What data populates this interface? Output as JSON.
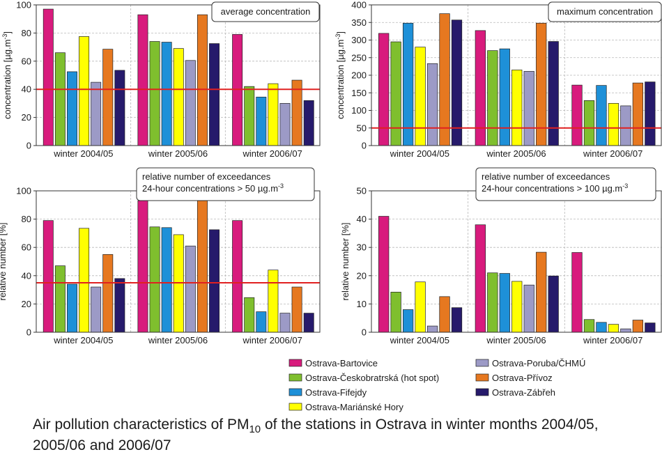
{
  "caption": {
    "pre": "Air pollution characteristics of PM",
    "sub": "10",
    "post": " of the stations in Ostrava in winter months 2004/05, 2005/06 and 2006/07"
  },
  "legend": {
    "stations": [
      {
        "name": "Ostrava-Bartovice",
        "color": "#d81b7d"
      },
      {
        "name": "Ostrava-Českobratrská (hot spot)",
        "color": "#7fbf2e"
      },
      {
        "name": "Ostrava-Fifejdy",
        "color": "#1e90d8"
      },
      {
        "name": "Ostrava-Mariánské Hory",
        "color": "#ffff00"
      },
      {
        "name": "Ostrava-Poruba/ČHMÚ",
        "color": "#9c9ac6"
      },
      {
        "name": "Ostrava-Přívoz",
        "color": "#e67820"
      },
      {
        "name": "Ostrava-Zábřeh",
        "color": "#261a6b"
      }
    ]
  },
  "chart_data": [
    {
      "type": "bar",
      "title": "average concentration",
      "ylabel": "concentration [µg.m-3]",
      "categories": [
        "winter 2004/05",
        "winter 2005/06",
        "winter 2006/07"
      ],
      "ylim": [
        0,
        100
      ],
      "yticks": [
        0,
        20,
        40,
        60,
        80,
        100
      ],
      "limit_line": 40,
      "series": [
        {
          "name": "Ostrava-Bartovice",
          "values": [
            97,
            93,
            79
          ]
        },
        {
          "name": "Ostrava-Českobratrská (hot spot)",
          "values": [
            66,
            74,
            42
          ]
        },
        {
          "name": "Ostrava-Fifejdy",
          "values": [
            52.5,
            73.5,
            34.5
          ]
        },
        {
          "name": "Ostrava-Mariánské Hory",
          "values": [
            77.5,
            69,
            44
          ]
        },
        {
          "name": "Ostrava-Poruba/ČHMÚ",
          "values": [
            45,
            60.5,
            30
          ]
        },
        {
          "name": "Ostrava-Přívoz",
          "values": [
            68.5,
            93,
            46.5
          ]
        },
        {
          "name": "Ostrava-Zábřeh",
          "values": [
            53.5,
            72.5,
            32
          ]
        }
      ]
    },
    {
      "type": "bar",
      "title": "maximum concentration",
      "ylabel": "concentration [µg.m-3]",
      "categories": [
        "winter 2004/05",
        "winter 2005/06",
        "winter 2006/07"
      ],
      "ylim": [
        0,
        400
      ],
      "yticks": [
        0,
        50,
        100,
        150,
        200,
        250,
        300,
        350,
        400
      ],
      "limit_line": 50,
      "series": [
        {
          "name": "Ostrava-Bartovice",
          "values": [
            319,
            327,
            172
          ]
        },
        {
          "name": "Ostrava-Českobratrská (hot spot)",
          "values": [
            295,
            270,
            128
          ]
        },
        {
          "name": "Ostrava-Fifejdy",
          "values": [
            348,
            275,
            171
          ]
        },
        {
          "name": "Ostrava-Mariánské Hory",
          "values": [
            280,
            215,
            120
          ]
        },
        {
          "name": "Ostrava-Poruba/ČHMÚ",
          "values": [
            233,
            211,
            113
          ]
        },
        {
          "name": "Ostrava-Přívoz",
          "values": [
            375,
            348,
            178
          ]
        },
        {
          "name": "Ostrava-Zábřeh",
          "values": [
            357,
            296,
            181
          ]
        }
      ]
    },
    {
      "type": "bar",
      "title_lines": [
        "relative number of exceedances",
        "24-hour concentrations > 50 µg.m-3"
      ],
      "ylabel": "relative number [%]",
      "categories": [
        "winter 2004/05",
        "winter 2005/06",
        "winter 2006/07"
      ],
      "ylim": [
        0,
        100
      ],
      "yticks": [
        0,
        20,
        40,
        60,
        80,
        100
      ],
      "limit_line": 35,
      "series": [
        {
          "name": "Ostrava-Bartovice",
          "values": [
            79,
            93,
            79
          ]
        },
        {
          "name": "Ostrava-Českobratrská (hot spot)",
          "values": [
            47,
            74.5,
            24.5
          ]
        },
        {
          "name": "Ostrava-Fifejdy",
          "values": [
            34,
            74,
            14.5
          ]
        },
        {
          "name": "Ostrava-Mariánské Hory",
          "values": [
            73.5,
            69,
            44
          ]
        },
        {
          "name": "Ostrava-Poruba/ČHMÚ",
          "values": [
            32,
            61,
            13.5
          ]
        },
        {
          "name": "Ostrava-Přívoz",
          "values": [
            55,
            93,
            32
          ]
        },
        {
          "name": "Ostrava-Zábřeh",
          "values": [
            38,
            72.5,
            13.5
          ]
        }
      ]
    },
    {
      "type": "bar",
      "title_lines": [
        "relative number of exceedances",
        "24-hour concentrations > 100 µg.m-3"
      ],
      "ylabel": "relative number [%]",
      "categories": [
        "winter 2004/05",
        "winter 2005/06",
        "winter 2006/07"
      ],
      "ylim": [
        0,
        50
      ],
      "yticks": [
        0,
        10,
        20,
        30,
        40,
        50
      ],
      "series": [
        {
          "name": "Ostrava-Bartovice",
          "values": [
            41,
            38,
            28.2
          ]
        },
        {
          "name": "Ostrava-Českobratrská (hot spot)",
          "values": [
            14.2,
            21,
            4.5
          ]
        },
        {
          "name": "Ostrava-Fifejdy",
          "values": [
            8,
            20.8,
            3.5
          ]
        },
        {
          "name": "Ostrava-Mariánské Hory",
          "values": [
            17.8,
            18,
            2.8
          ]
        },
        {
          "name": "Ostrava-Poruba/ČHMÚ",
          "values": [
            2.2,
            16.7,
            1.2
          ]
        },
        {
          "name": "Ostrava-Přívoz",
          "values": [
            12.6,
            28.3,
            4.3
          ]
        },
        {
          "name": "Ostrava-Zábřeh",
          "values": [
            8.7,
            19.9,
            3.3
          ]
        }
      ]
    }
  ]
}
